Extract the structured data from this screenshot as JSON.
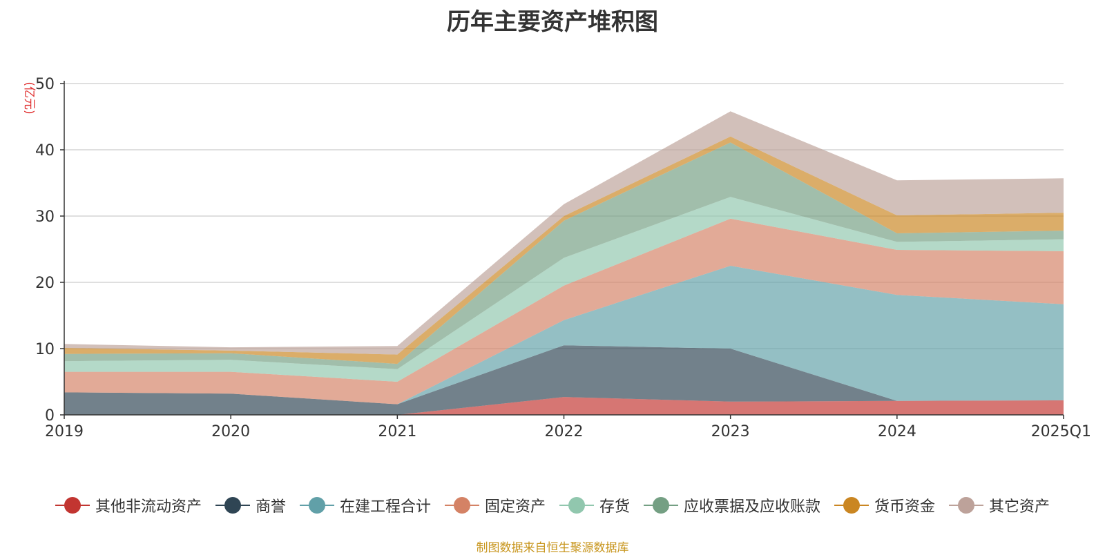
{
  "chart_data": {
    "type": "area",
    "stacked": true,
    "title": "历年主要资产堆积图",
    "unit_label": "(亿元)",
    "x": [
      "2019",
      "2020",
      "2021",
      "2022",
      "2023",
      "2024",
      "2025Q1"
    ],
    "ylim": [
      0,
      50
    ],
    "yticks": [
      "0",
      "10",
      "20",
      "30",
      "40",
      "50"
    ],
    "grid": true,
    "legend_position": "bottom",
    "series": [
      {
        "name": "其他非流动资产",
        "color": "#c23531",
        "values": [
          0,
          0,
          0,
          2.7,
          2.0,
          2.1,
          2.2
        ]
      },
      {
        "name": "商誉",
        "color": "#2f4554",
        "values": [
          3.4,
          3.2,
          1.6,
          7.8,
          8.0,
          0,
          0
        ]
      },
      {
        "name": "在建工程合计",
        "color": "#61a0a8",
        "values": [
          0,
          0,
          0,
          3.8,
          12.5,
          16.0,
          14.5
        ]
      },
      {
        "name": "固定资产",
        "color": "#d48265",
        "values": [
          3.1,
          3.3,
          3.4,
          5.2,
          7.1,
          6.8,
          8.0
        ]
      },
      {
        "name": "存货",
        "color": "#91c7ae",
        "values": [
          1.6,
          1.8,
          1.9,
          4.2,
          3.3,
          1.2,
          1.8
        ]
      },
      {
        "name": "应收票据及应收账款",
        "color": "#749f83",
        "values": [
          1.1,
          1.0,
          0.8,
          5.6,
          8.2,
          1.3,
          1.3
        ]
      },
      {
        "name": "货币资金",
        "color": "#ca8622",
        "values": [
          0.9,
          0.4,
          1.4,
          0.7,
          0.9,
          2.7,
          2.7
        ]
      },
      {
        "name": "其它资产",
        "color": "#bda29a",
        "values": [
          0.6,
          0.5,
          1.3,
          1.8,
          3.8,
          5.3,
          5.2
        ]
      }
    ]
  },
  "footer": {
    "source_note": "制图数据来自恒生聚源数据库"
  }
}
